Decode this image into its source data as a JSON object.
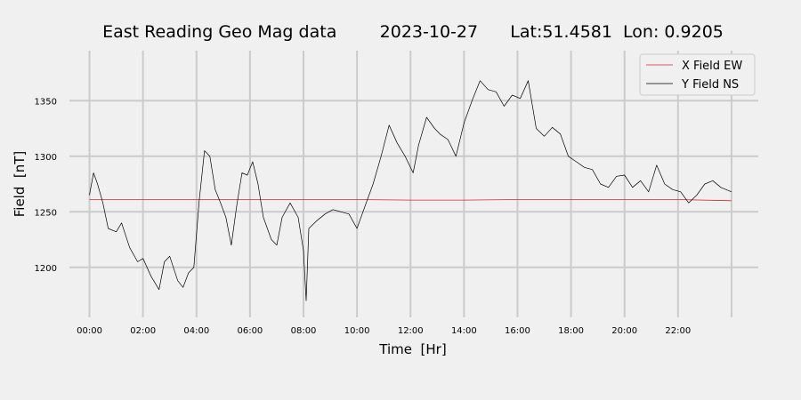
{
  "chart_data": {
    "type": "line",
    "title": "East Reading Geo Mag data        2023-10-27      Lat:51.4581  Lon: 0.9205",
    "xlabel": "Time  [Hr]",
    "ylabel": "Field  [nT]",
    "x_ticks": [
      "00:00",
      "02:00",
      "04:00",
      "06:00",
      "08:00",
      "10:00",
      "12:00",
      "14:00",
      "16:00",
      "18:00",
      "20:00",
      "22:00"
    ],
    "y_ticks": [
      1200,
      1250,
      1300,
      1350
    ],
    "xlim": [
      -0.75,
      25.0
    ],
    "ylim": [
      1155,
      1395
    ],
    "grid": true,
    "legend_position": "top-right",
    "colors": {
      "background": "#f0f0f0",
      "grid": "#cbcbcb",
      "x_series": "#d62728",
      "y_series": "#000000"
    },
    "series": [
      {
        "name": "X Field EW",
        "color": "#d62728",
        "x": [
          0,
          2,
          4,
          6,
          8,
          10,
          12,
          14,
          16,
          18,
          20,
          22,
          24
        ],
        "values": [
          1261,
          1261,
          1261,
          1261,
          1261,
          1261,
          1260.5,
          1260.5,
          1261,
          1261,
          1261,
          1261,
          1260
        ]
      },
      {
        "name": "Y Field NS",
        "color": "#000000",
        "x": [
          0,
          0.15,
          0.3,
          0.5,
          0.7,
          1.0,
          1.2,
          1.5,
          1.8,
          2.0,
          2.3,
          2.6,
          2.8,
          3.0,
          3.3,
          3.5,
          3.7,
          3.9,
          4.1,
          4.3,
          4.5,
          4.7,
          4.9,
          5.1,
          5.3,
          5.5,
          5.7,
          5.9,
          6.1,
          6.3,
          6.5,
          6.8,
          7.0,
          7.2,
          7.5,
          7.8,
          8.0,
          8.1,
          8.2,
          8.5,
          8.8,
          9.1,
          9.4,
          9.7,
          10.0,
          10.3,
          10.6,
          10.9,
          11.2,
          11.5,
          11.8,
          12.1,
          12.3,
          12.6,
          12.9,
          13.1,
          13.4,
          13.7,
          14.0,
          14.3,
          14.6,
          14.9,
          15.2,
          15.5,
          15.8,
          16.1,
          16.4,
          16.7,
          17.0,
          17.3,
          17.6,
          17.9,
          18.2,
          18.5,
          18.8,
          19.1,
          19.4,
          19.7,
          20.0,
          20.3,
          20.6,
          20.9,
          21.2,
          21.5,
          21.8,
          22.1,
          22.4,
          22.7,
          23.0,
          23.3,
          23.6,
          24.0
        ],
        "values": [
          1265,
          1285,
          1275,
          1258,
          1235,
          1232,
          1240,
          1218,
          1205,
          1208,
          1192,
          1180,
          1205,
          1210,
          1188,
          1182,
          1195,
          1200,
          1260,
          1305,
          1300,
          1270,
          1258,
          1245,
          1220,
          1255,
          1285,
          1283,
          1295,
          1275,
          1245,
          1225,
          1220,
          1245,
          1258,
          1245,
          1215,
          1170,
          1235,
          1242,
          1248,
          1252,
          1250,
          1248,
          1235,
          1255,
          1275,
          1300,
          1328,
          1312,
          1300,
          1285,
          1310,
          1335,
          1325,
          1320,
          1315,
          1300,
          1330,
          1350,
          1368,
          1360,
          1358,
          1345,
          1355,
          1352,
          1368,
          1325,
          1318,
          1326,
          1320,
          1300,
          1295,
          1290,
          1288,
          1275,
          1272,
          1282,
          1283,
          1272,
          1278,
          1268,
          1292,
          1275,
          1270,
          1268,
          1258,
          1265,
          1275,
          1278,
          1272,
          1268
        ]
      }
    ]
  }
}
